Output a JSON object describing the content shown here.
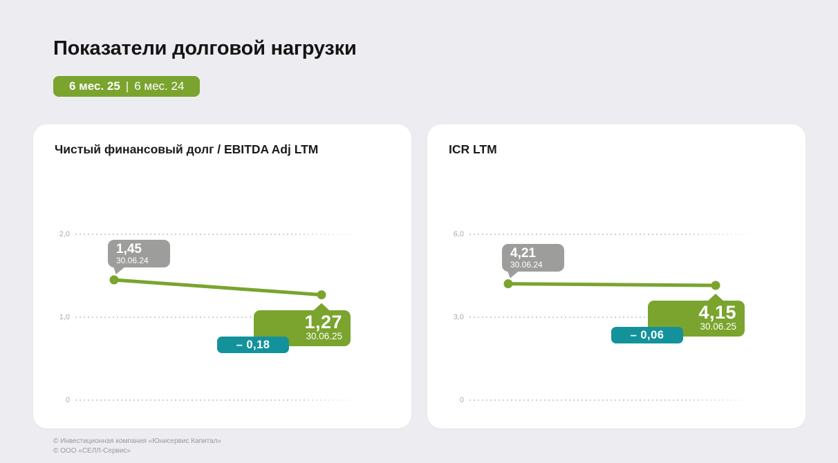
{
  "colors": {
    "background": "#ededf1",
    "card": "#ffffff",
    "green": "#7aa42e",
    "teal": "#14929b",
    "gray_tooltip": "#9d9d9b",
    "gridline": "#cdced2",
    "tick_label": "#ababaf"
  },
  "header": {
    "title": "Показатели долговой нагрузки",
    "badge_current": "6 мес. 25",
    "badge_separator": "|",
    "badge_previous": "6 мес. 24"
  },
  "footer": {
    "line1": "© Инвестиционная компания «Юнисервис Капитал»",
    "line2": "© ООО «СЕЛЛ-Сервис»"
  },
  "chart_data": [
    {
      "type": "line",
      "title": "Чистый финансовый долг / EBITDA Adj LTM",
      "x": [
        "30.06.24",
        "30.06.25"
      ],
      "values": [
        1.45,
        1.27
      ],
      "value_labels": [
        "1,45",
        "1,27"
      ],
      "delta": -0.18,
      "delta_label": "– 0,18",
      "ylim": [
        0,
        2.0
      ],
      "yticks": [
        {
          "value": 2.0,
          "label": "2,0"
        },
        {
          "value": 1.0,
          "label": "1,0"
        },
        {
          "value": 0.0,
          "label": "0"
        }
      ],
      "grid": "horizontal-dotted",
      "legend": "none"
    },
    {
      "type": "line",
      "title": "ICR LTM",
      "x": [
        "30.06.24",
        "30.06.25"
      ],
      "values": [
        4.21,
        4.15
      ],
      "value_labels": [
        "4,21",
        "4,15"
      ],
      "delta": -0.06,
      "delta_label": "– 0,06",
      "ylim": [
        0,
        6.0
      ],
      "yticks": [
        {
          "value": 6.0,
          "label": "6,0"
        },
        {
          "value": 3.0,
          "label": "3,0"
        },
        {
          "value": 0.0,
          "label": "0"
        }
      ],
      "grid": "horizontal-dotted",
      "legend": "none"
    }
  ]
}
